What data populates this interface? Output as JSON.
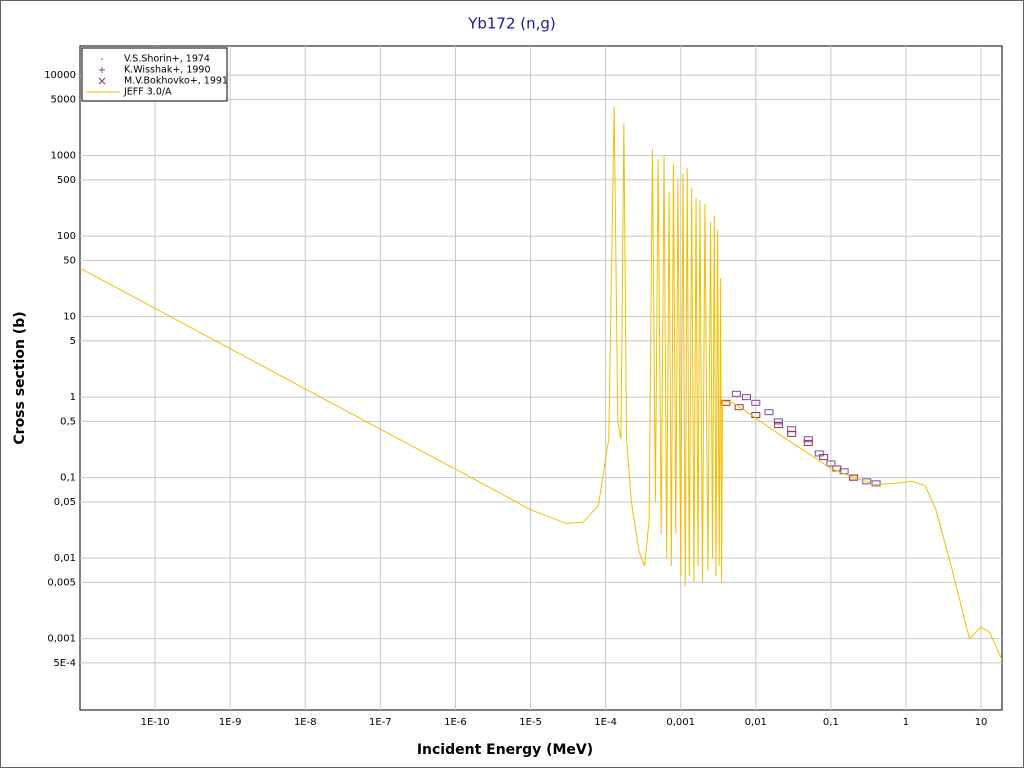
{
  "chart_data": {
    "type": "line",
    "title": "Yb172 (n,g)",
    "x_label": "Incident Energy (MeV)",
    "y_label": "Cross section (b)",
    "x_scale": "log",
    "y_scale": "log",
    "grid": true,
    "legend": "top-left",
    "xlim": [
      1e-11,
      19
    ],
    "ylim": [
      0.00013,
      23000
    ],
    "xticks": [
      {
        "value": 1e-10,
        "label": "1E-10"
      },
      {
        "value": 1e-09,
        "label": "1E-9"
      },
      {
        "value": 1e-08,
        "label": "1E-8"
      },
      {
        "value": 1e-07,
        "label": "1E-7"
      },
      {
        "value": 1e-06,
        "label": "1E-6"
      },
      {
        "value": 1e-05,
        "label": "1E-5"
      },
      {
        "value": 0.0001,
        "label": "1E-4"
      },
      {
        "value": 0.001,
        "label": "0,001"
      },
      {
        "value": 0.01,
        "label": "0,01"
      },
      {
        "value": 0.1,
        "label": "0,1"
      },
      1,
      10
    ],
    "yticks": [
      10000,
      5000,
      1000,
      500,
      100,
      50,
      10,
      5,
      1,
      {
        "value": 0.5,
        "label": "0,5"
      },
      {
        "value": 0.1,
        "label": "0,1"
      },
      {
        "value": 0.05,
        "label": "0,05"
      },
      {
        "value": 0.01,
        "label": "0,01"
      },
      {
        "value": 0.005,
        "label": "0,005"
      },
      {
        "value": 0.001,
        "label": "0,001"
      },
      {
        "value": 0.0005,
        "label": "5E-4"
      }
    ],
    "series": [
      {
        "name": "V.S.Shorin+, 1974",
        "type": "scatter",
        "marker": "dot",
        "color": "#c03030",
        "x": [],
        "values": []
      },
      {
        "name": "K.Wisshak+, 1990",
        "type": "scatter",
        "marker": "plus",
        "color": "#7a4aa8",
        "x": [
          0.0055,
          0.0075,
          0.01,
          0.015,
          0.02,
          0.03,
          0.05,
          0.07,
          0.1,
          0.15,
          0.2,
          0.3,
          0.4
        ],
        "values": [
          1.1,
          1.0,
          0.85,
          0.65,
          0.5,
          0.4,
          0.3,
          0.2,
          0.15,
          0.12,
          0.1,
          0.09,
          0.085
        ]
      },
      {
        "name": "M.V.Bokhovko+, 1991",
        "type": "scatter",
        "marker": "cross",
        "color": "#9a3050",
        "x": [
          0.004,
          0.006,
          0.01,
          0.02,
          0.03,
          0.05,
          0.08,
          0.12,
          0.2
        ],
        "values": [
          0.85,
          0.75,
          0.6,
          0.45,
          0.35,
          0.27,
          0.18,
          0.13,
          0.1
        ]
      },
      {
        "name": "JEFF 3.0/A",
        "type": "line",
        "color": "#f0c000",
        "x": [
          1e-11,
          1e-09,
          1e-07,
          1e-06,
          1e-05,
          3e-05,
          5e-05,
          8e-05,
          0.00011,
          0.00013,
          0.000145,
          0.00016,
          0.000175,
          0.00019,
          0.00022,
          0.00028,
          0.00033,
          0.00038,
          0.00042,
          0.00046,
          0.0005,
          0.00055,
          0.0006,
          0.00065,
          0.0007,
          0.00075,
          0.0008,
          0.00086,
          0.00092,
          0.001,
          0.00107,
          0.00115,
          0.00122,
          0.0013,
          0.0014,
          0.0015,
          0.0016,
          0.0017,
          0.0018,
          0.00195,
          0.0021,
          0.0023,
          0.0025,
          0.00265,
          0.0028,
          0.00295,
          0.0031,
          0.00325,
          0.0034,
          0.0035,
          0.0036,
          0.005,
          0.01,
          0.02,
          0.05,
          0.1,
          0.2,
          0.4,
          0.7,
          1.2,
          1.8,
          2.5,
          4,
          7,
          10,
          13,
          19
        ],
        "values": [
          40,
          4,
          0.4,
          0.128,
          0.04,
          0.027,
          0.028,
          0.045,
          0.3,
          4000,
          0.5,
          0.3,
          2500,
          0.3,
          0.05,
          0.012,
          0.008,
          0.03,
          1200,
          0.05,
          900,
          0.02,
          1000,
          0.01,
          350,
          0.008,
          800,
          0.02,
          500,
          0.006,
          600,
          0.0045,
          700,
          0.006,
          400,
          0.005,
          300,
          0.008,
          280,
          0.005,
          250,
          0.007,
          150,
          0.01,
          180,
          0.006,
          120,
          0.008,
          30,
          0.005,
          0.9,
          0.85,
          0.55,
          0.35,
          0.2,
          0.13,
          0.1,
          0.082,
          0.085,
          0.09,
          0.08,
          0.04,
          0.008,
          0.001,
          0.0014,
          0.0012,
          0.00055
        ]
      }
    ]
  }
}
